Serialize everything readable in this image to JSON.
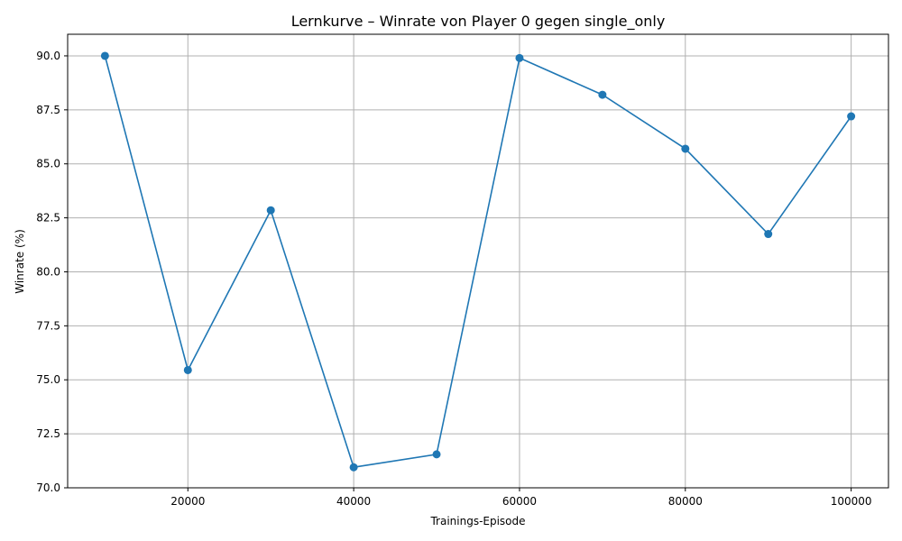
{
  "chart_data": {
    "type": "line",
    "title": "Lernkurve – Winrate von Player 0 gegen single_only",
    "xlabel": "Trainings-Episode",
    "ylabel": "Winrate (%)",
    "x": [
      10000,
      20000,
      30000,
      40000,
      50000,
      60000,
      70000,
      80000,
      90000,
      100000
    ],
    "series": [
      {
        "values": [
          90.0,
          75.45,
          82.85,
          70.95,
          71.55,
          89.9,
          88.2,
          85.7,
          81.75,
          87.2
        ]
      }
    ],
    "xlim": [
      5500,
      104500
    ],
    "ylim": [
      70.0,
      91.0
    ],
    "xticks": [
      20000,
      40000,
      60000,
      80000,
      100000
    ],
    "yticks": [
      70.0,
      72.5,
      75.0,
      77.5,
      80.0,
      82.5,
      85.0,
      87.5,
      90.0
    ],
    "ytick_labels": [
      "70.0",
      "72.5",
      "75.0",
      "77.5",
      "80.0",
      "82.5",
      "85.0",
      "87.5",
      "90.0"
    ],
    "grid": true,
    "markers": true,
    "colors": {
      "series": "#1f77b4",
      "grid": "#b0b0b0"
    }
  }
}
